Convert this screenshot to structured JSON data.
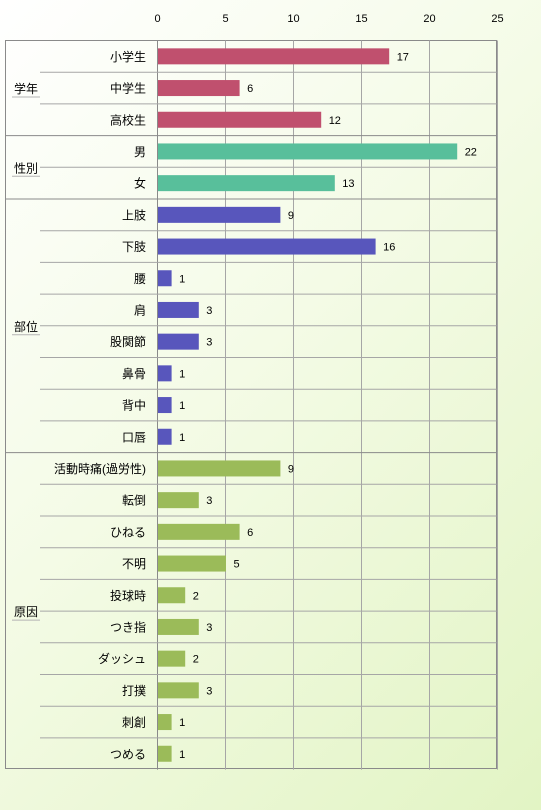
{
  "chart_data": {
    "type": "bar",
    "orientation": "horizontal",
    "x_axis_position": "top",
    "xlim": [
      0,
      25
    ],
    "x_ticks": [
      "0",
      "5",
      "10",
      "15",
      "20",
      "25"
    ],
    "grid": true,
    "legend": "none",
    "groups": [
      {
        "name": "学年",
        "color": "#c0506e",
        "categories": [
          "小学生",
          "中学生",
          "高校生"
        ],
        "values": [
          17,
          6,
          12
        ]
      },
      {
        "name": "性別",
        "color": "#58bf9b",
        "categories": [
          "男",
          "女"
        ],
        "values": [
          22,
          13
        ]
      },
      {
        "name": "部位",
        "color": "#5856bc",
        "categories": [
          "上肢",
          "下肢",
          "腰",
          "肩",
          "股関節",
          "鼻骨",
          "背中",
          "口唇"
        ],
        "values": [
          9,
          16,
          1,
          3,
          3,
          1,
          1,
          1
        ]
      },
      {
        "name": "原因",
        "color": "#9bbb59",
        "categories": [
          "活動時痛(過労性)",
          "転倒",
          "ひねる",
          "不明",
          "投球時",
          "つき指",
          "ダッシュ",
          "打撲",
          "刺創",
          "つめる"
        ],
        "values": [
          9,
          3,
          6,
          5,
          2,
          3,
          2,
          3,
          1,
          1
        ]
      }
    ]
  }
}
